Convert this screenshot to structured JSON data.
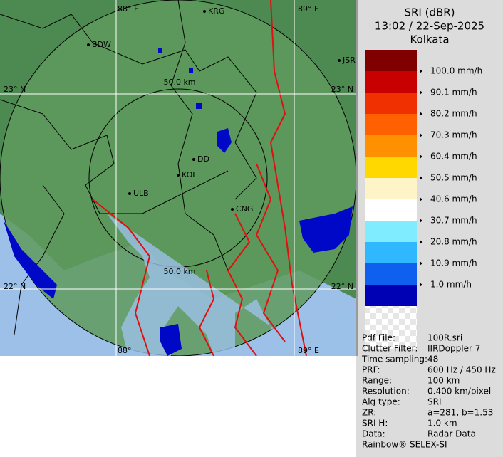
{
  "header": {
    "product": "SRI (dBR)",
    "datetime": "13:02 / 22-Sep-2025",
    "station": "Kolkata"
  },
  "map": {
    "places": [
      "KRG",
      "BDW",
      "JSR",
      "DD",
      "KOL",
      "ULB",
      "CNG"
    ],
    "grid_labels": [
      "88° E",
      "89° E",
      "23° N",
      "23° N",
      "22° N",
      "22° N",
      "88°",
      "89° E"
    ],
    "range_labels": [
      "50.0 km",
      "50.0 km"
    ]
  },
  "legend": [
    {
      "label": null,
      "color": "#800000"
    },
    {
      "label": "100.0 mm/h",
      "color": "#c80000"
    },
    {
      "label": "90.1 mm/h",
      "color": "#f03000"
    },
    {
      "label": "80.2 mm/h",
      "color": "#ff6000"
    },
    {
      "label": "70.3 mm/h",
      "color": "#ff9000"
    },
    {
      "label": "60.4 mm/h",
      "color": "#ffd800"
    },
    {
      "label": "50.5 mm/h",
      "color": "#fff4c8"
    },
    {
      "label": "40.6 mm/h",
      "color": "#ffffff"
    },
    {
      "label": "30.7 mm/h",
      "color": "#80ecff"
    },
    {
      "label": "20.8 mm/h",
      "color": "#30b8ff"
    },
    {
      "label": "10.9 mm/h",
      "color": "#1060f0"
    },
    {
      "label": "1.0 mm/h",
      "color": "#0000b4"
    }
  ],
  "info": [
    [
      "Pdf File:",
      "100R.sri"
    ],
    [
      "Clutter Filter:",
      "IIRDoppler 7"
    ],
    [
      "Time sampling:",
      "48"
    ],
    [
      "PRF:",
      "600 Hz / 450 Hz"
    ],
    [
      "Range:",
      "100 km"
    ],
    [
      "Resolution:",
      "0.400 km/pixel"
    ],
    [
      "Alg type:",
      "SRI"
    ],
    [
      "ZR:",
      "a=281, b=1.53"
    ],
    [
      "SRI H:",
      "1.0 km"
    ],
    [
      "Data:",
      "Radar Data"
    ]
  ],
  "footer": "Rainbow® SELEX-SI"
}
